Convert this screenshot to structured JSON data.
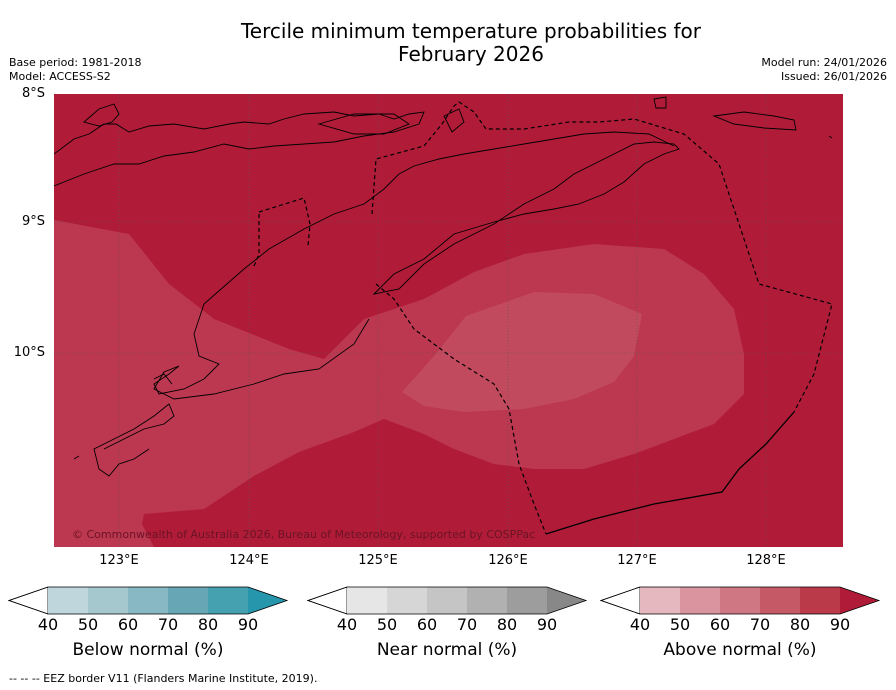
{
  "title_line1": "Tercile minimum temperature probabilities for",
  "title_line2": "February 2026",
  "base_period": "Base period: 1981-2018",
  "model": "Model: ACCESS-S2",
  "model_run": "Model run: 24/01/2026",
  "issued": "Issued: 26/01/2026",
  "map": {
    "lat_labels": [
      "8°S",
      "9°S",
      "10°S"
    ],
    "lon_labels": [
      "123°E",
      "124°E",
      "125°E",
      "126°E",
      "127°E",
      "128°E"
    ],
    "copyright": "© Commonwealth of Australia 2026, Bureau of Meteorology, supported by COSPPac",
    "colors": {
      "above_90": "#b01c38",
      "above_80": "#bd3a50",
      "above_70": "#c24a5e"
    }
  },
  "colorbars": [
    {
      "label": "Below normal (%)",
      "ticks": [
        "40",
        "50",
        "60",
        "70",
        "80",
        "90"
      ],
      "colors": [
        "#bfd6dc",
        "#a5c8cf",
        "#88b8c3",
        "#67a7b5",
        "#45a0b0",
        "#2596ab"
      ]
    },
    {
      "label": "Near normal (%)",
      "ticks": [
        "40",
        "50",
        "60",
        "70",
        "80",
        "90"
      ],
      "colors": [
        "#e6e6e6",
        "#d6d6d6",
        "#c5c5c5",
        "#b1b1b1",
        "#9d9d9d",
        "#888888"
      ]
    },
    {
      "label": "Above normal (%)",
      "ticks": [
        "40",
        "50",
        "60",
        "70",
        "80",
        "90"
      ],
      "colors": [
        "#e5b7bf",
        "#d9949f",
        "#cf7782",
        "#c55a66",
        "#bb3a4a",
        "#b01c38"
      ]
    }
  ],
  "eez_note": "--  --  -- EEZ border V11 (Flanders Marine Institute, 2019)."
}
